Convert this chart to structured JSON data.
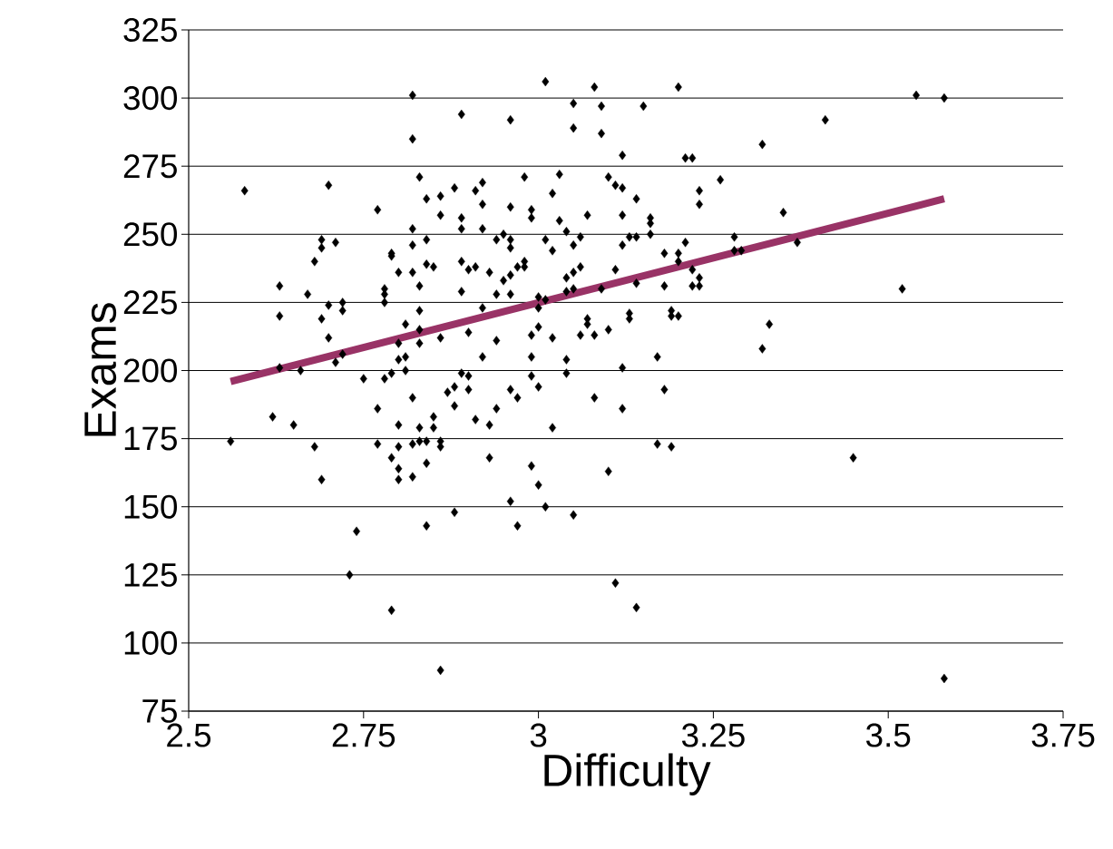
{
  "chart_data": {
    "type": "scatter",
    "xlabel": "Difficulty",
    "ylabel": "Exams",
    "xlim": [
      2.5,
      3.75
    ],
    "ylim": [
      75,
      325
    ],
    "xticks": [
      2.5,
      2.75,
      3,
      3.25,
      3.5,
      3.75
    ],
    "yticks": [
      75,
      100,
      125,
      150,
      175,
      200,
      225,
      250,
      275,
      300,
      325
    ],
    "grid": "y",
    "marker": "diamond",
    "series": [
      {
        "color": "#000000",
        "x": [
          2.56,
          2.58,
          3.58,
          3.54,
          3.58,
          3.45,
          3.41,
          3.52,
          3.32,
          3.35,
          3.37,
          3.33,
          3.32,
          3.29,
          3.01,
          3.08,
          3.2,
          3.05,
          3.09,
          3.15,
          2.96,
          3.05,
          3.09,
          3.12,
          3.21,
          3.22,
          2.92,
          2.98,
          3.03,
          3.1,
          3.11,
          3.12,
          3.26,
          3.23,
          3.02,
          3.14,
          3.23,
          2.96,
          2.99,
          2.99,
          3.03,
          3.07,
          3.12,
          3.16,
          3.16,
          3.04,
          2.94,
          2.95,
          2.96,
          3.01,
          3.06,
          3.05,
          3.13,
          3.14,
          3.16,
          3.12,
          3.21,
          3.28,
          2.96,
          3.02,
          3.18,
          3.2,
          3.28,
          3.2,
          2.98,
          2.97,
          2.98,
          2.96,
          2.95,
          2.93,
          3.05,
          3.06,
          3.04,
          3.11,
          3.22,
          3.23,
          3.14,
          3.18,
          3.22,
          3.23,
          2.94,
          2.96,
          3.04,
          3.05,
          3.09,
          3.0,
          3.01,
          3.0,
          3.19,
          3.19,
          3.2,
          3.13,
          3.13,
          3.07,
          3.07,
          3.0,
          2.99,
          3.1,
          3.08,
          3.06,
          3.02,
          2.94,
          2.99,
          3.04,
          3.17,
          3.12,
          2.99,
          3.04,
          2.96,
          3.0,
          2.97,
          3.08,
          3.18,
          2.94,
          3.12,
          2.93,
          3.02,
          3.17,
          3.19,
          2.93,
          2.99,
          3.1,
          3.0,
          2.96,
          3.01,
          3.05,
          2.97,
          3.11,
          3.14,
          2.82,
          2.89,
          2.82,
          2.7,
          2.77,
          2.83,
          2.84,
          2.86,
          2.86,
          2.88,
          2.89,
          2.89,
          2.91,
          2.92,
          2.92,
          2.82,
          2.82,
          2.84,
          2.69,
          2.69,
          2.71,
          2.68,
          2.79,
          2.79,
          2.8,
          2.82,
          2.84,
          2.85,
          2.89,
          2.9,
          2.91,
          2.63,
          2.67,
          2.78,
          2.78,
          2.83,
          2.89,
          2.7,
          2.72,
          2.72,
          2.78,
          2.83,
          2.92,
          2.63,
          2.69,
          2.7,
          2.81,
          2.83,
          2.86,
          2.9,
          2.8,
          2.83,
          2.72,
          2.71,
          2.8,
          2.81,
          2.92,
          2.63,
          2.66,
          2.75,
          2.78,
          2.79,
          2.81,
          2.89,
          2.9,
          2.82,
          2.88,
          2.87,
          2.9,
          2.88,
          2.77,
          2.62,
          2.65,
          2.85,
          2.8,
          2.83,
          2.85,
          2.91,
          2.68,
          2.77,
          2.8,
          2.82,
          2.83,
          2.84,
          2.86,
          2.86,
          2.79,
          2.8,
          2.84,
          2.8,
          2.82,
          2.69,
          2.88,
          2.84,
          2.74,
          2.73,
          2.79,
          2.86
        ],
        "values": [
          174,
          266,
          300,
          301,
          87,
          168,
          292,
          230,
          283,
          258,
          247,
          217,
          208,
          244,
          306,
          304,
          304,
          298,
          297,
          297,
          292,
          289,
          287,
          279,
          278,
          278,
          269,
          271,
          272,
          271,
          268,
          267,
          270,
          266,
          265,
          263,
          261,
          260,
          259,
          256,
          255,
          257,
          257,
          256,
          254,
          251,
          248,
          250,
          248,
          248,
          249,
          246,
          249,
          249,
          250,
          246,
          247,
          249,
          245,
          244,
          243,
          243,
          244,
          240,
          240,
          238,
          238,
          235,
          233,
          236,
          236,
          238,
          234,
          237,
          237,
          234,
          232,
          231,
          231,
          231,
          228,
          228,
          229,
          230,
          230,
          227,
          226,
          223,
          222,
          220,
          220,
          221,
          219,
          219,
          217,
          216,
          213,
          215,
          213,
          213,
          212,
          211,
          205,
          204,
          205,
          201,
          198,
          199,
          193,
          194,
          190,
          190,
          193,
          186,
          186,
          180,
          179,
          173,
          172,
          168,
          165,
          163,
          158,
          152,
          150,
          147,
          143,
          122,
          113,
          301,
          294,
          285,
          268,
          259,
          271,
          263,
          264,
          257,
          267,
          256,
          252,
          266,
          261,
          252,
          252,
          246,
          248,
          248,
          245,
          247,
          240,
          243,
          242,
          236,
          236,
          239,
          238,
          240,
          237,
          238,
          231,
          228,
          230,
          228,
          231,
          229,
          224,
          225,
          222,
          225,
          222,
          223,
          220,
          219,
          212,
          217,
          215,
          212,
          214,
          210,
          210,
          206,
          203,
          204,
          205,
          205,
          201,
          200,
          197,
          197,
          199,
          200,
          199,
          198,
          190,
          194,
          192,
          193,
          187,
          186,
          183,
          180,
          183,
          180,
          179,
          179,
          182,
          172,
          173,
          172,
          173,
          174,
          174,
          174,
          172,
          168,
          164,
          166,
          160,
          161,
          160,
          148,
          143,
          141,
          125,
          112,
          90
        ]
      },
      {
        "type": "line",
        "color": "#993366",
        "marker": "none",
        "line_style": "solid",
        "x": [
          2.56,
          3.58
        ],
        "values": [
          196,
          263
        ]
      }
    ]
  }
}
